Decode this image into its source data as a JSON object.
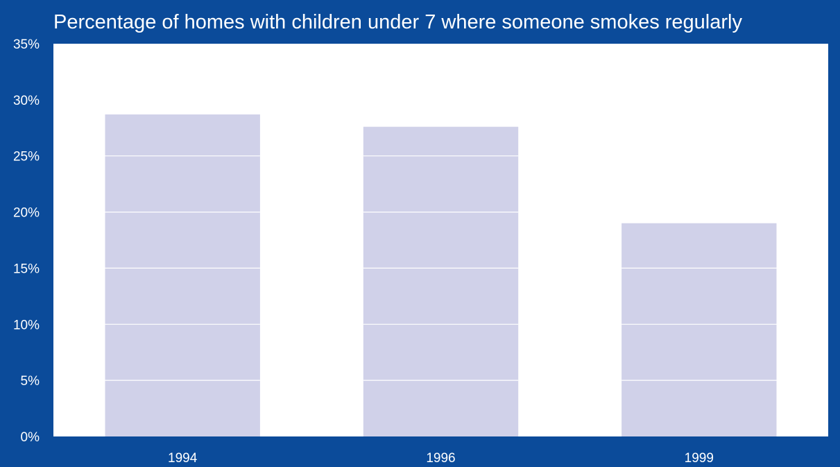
{
  "chart_data": {
    "type": "bar",
    "title": "Percentage of homes with children under 7 where someone smokes regularly",
    "xlabel": "",
    "ylabel": "",
    "categories": [
      "1994",
      "1996",
      "1999"
    ],
    "values": [
      28.7,
      27.6,
      19.0
    ],
    "ylim": [
      0,
      35
    ],
    "yticks": [
      0,
      5,
      10,
      15,
      20,
      25,
      30,
      35
    ],
    "ytick_format_suffix": "%",
    "gridlines": "horizontal, drawn only within bars",
    "legend": "none",
    "colors": {
      "background": "#0b4b9a",
      "plot_area": "#ffffff",
      "bar": "#d0d1e9",
      "text": "#ffffff"
    }
  }
}
